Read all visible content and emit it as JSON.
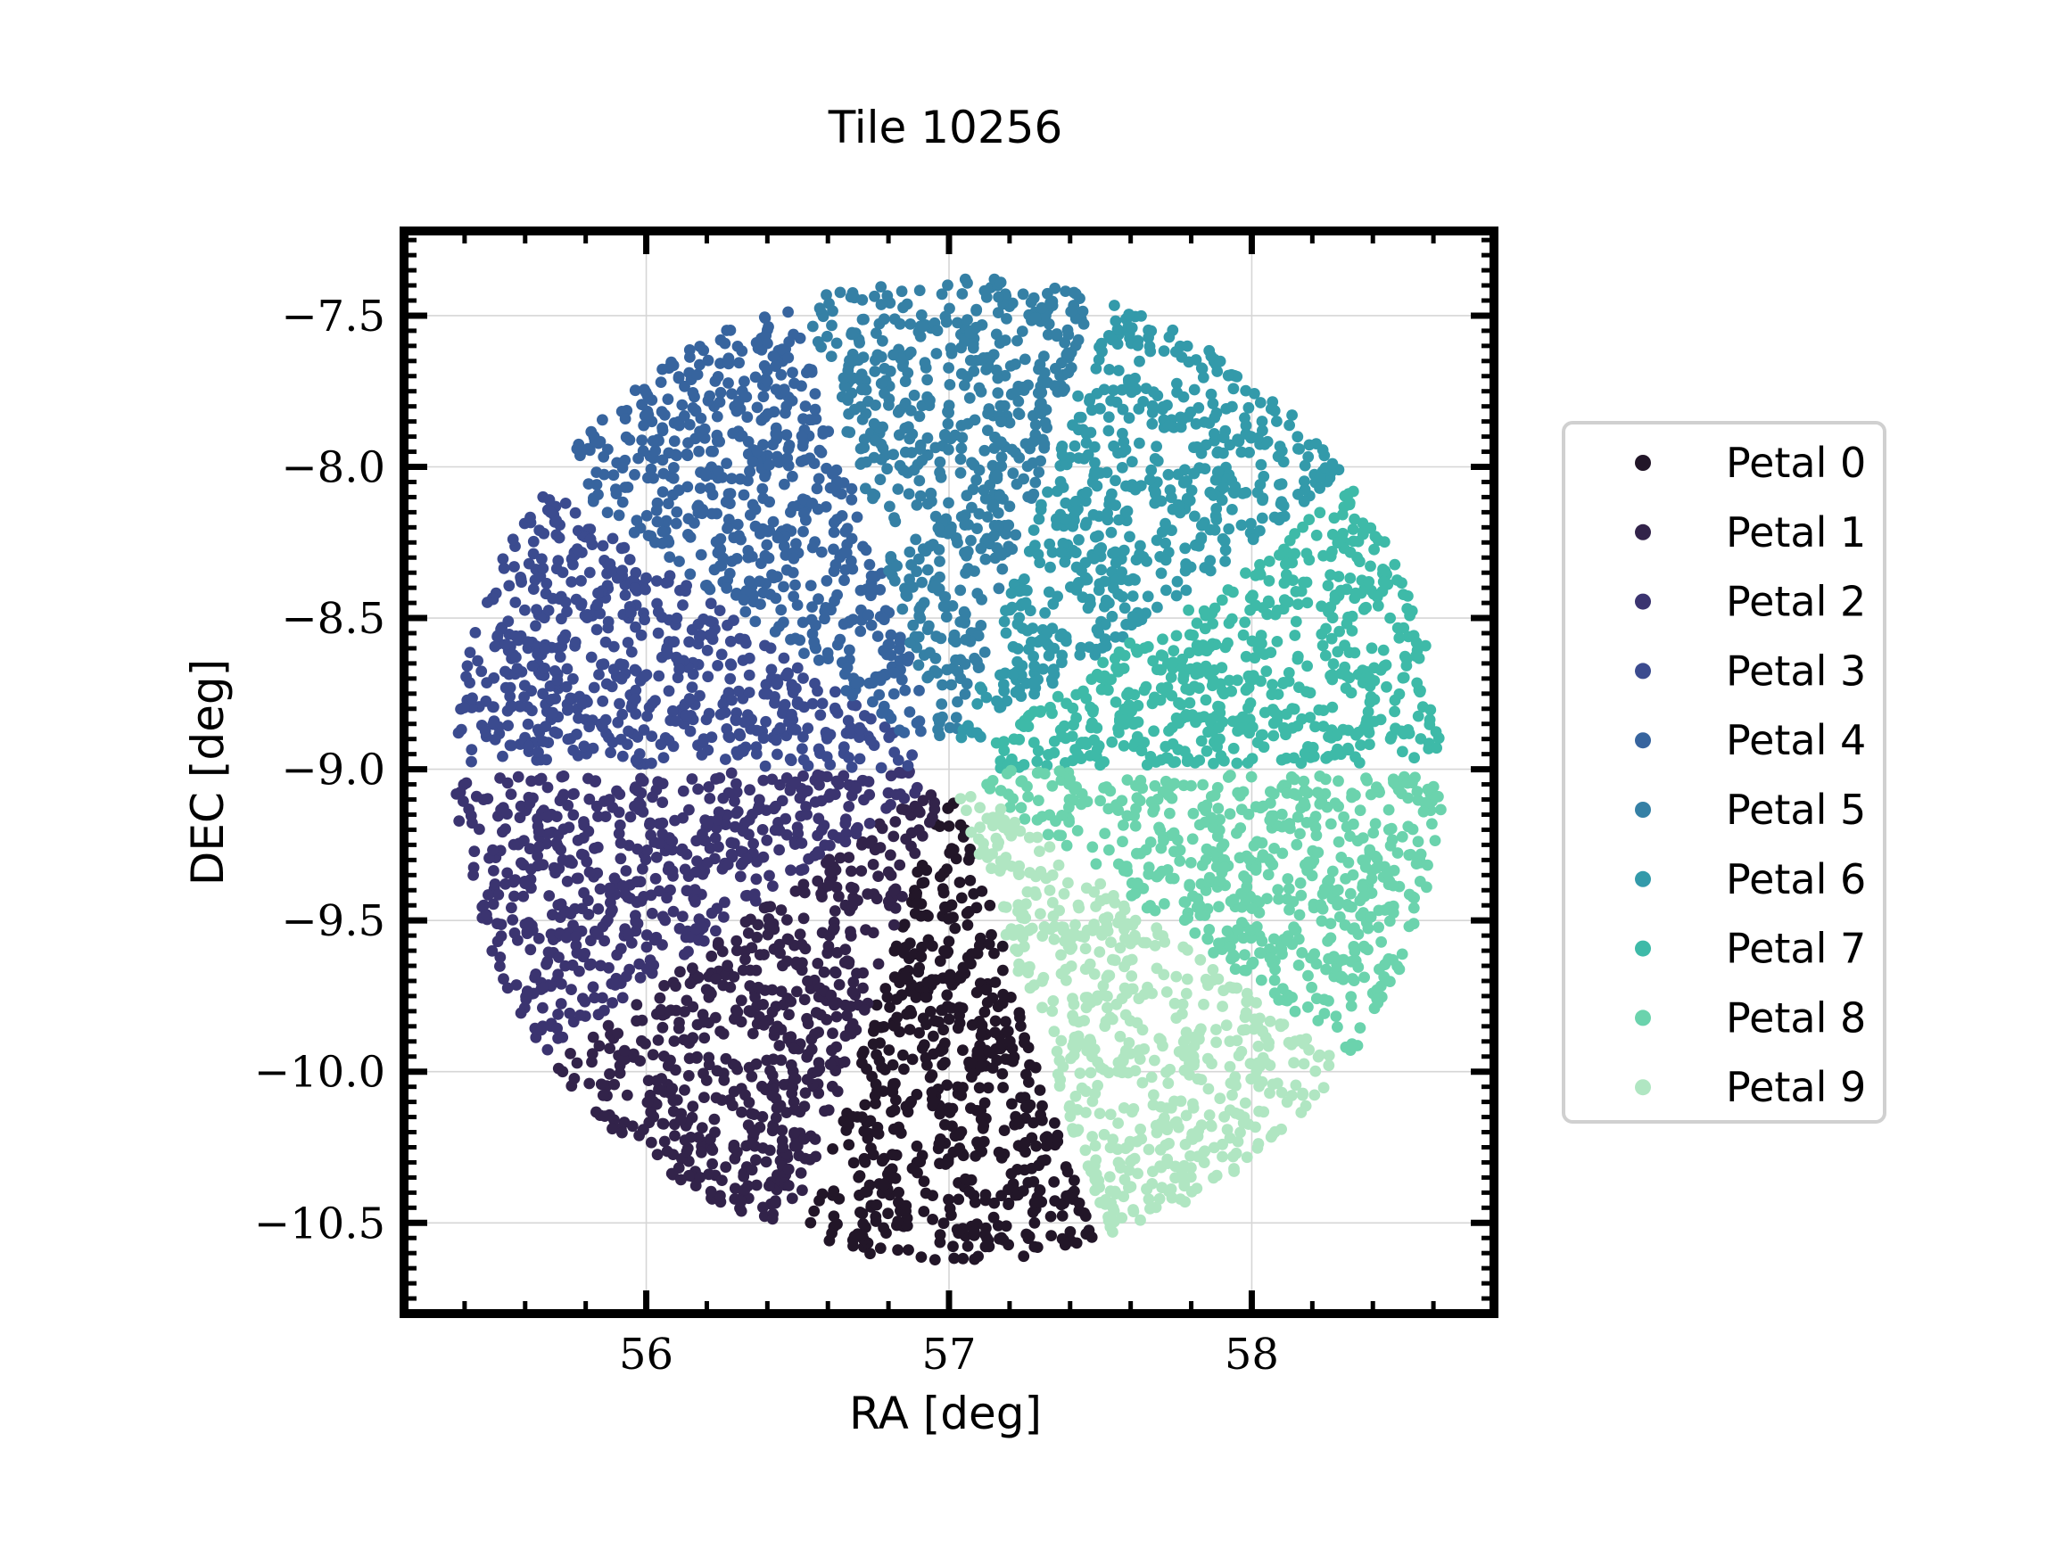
{
  "chart_data": {
    "type": "scatter",
    "title": "Tile 10256",
    "xlabel": "RA [deg]",
    "ylabel": "DEC [deg]",
    "xlim": [
      55.2,
      58.8
    ],
    "ylim": [
      -10.8,
      -7.22
    ],
    "xticks": [
      56,
      57,
      58
    ],
    "xtick_labels": [
      "56",
      "57",
      "58"
    ],
    "yticks": [
      -7.5,
      -8.0,
      -8.5,
      -9.0,
      -9.5,
      -10.0,
      -10.5
    ],
    "ytick_labels": [
      "−7.5",
      "−8.0",
      "−8.5",
      "−9.0",
      "−9.5",
      "−10.0",
      "−10.5"
    ],
    "grid": true,
    "legend_position": "right, outside plot",
    "field_center": [
      57.0,
      -9.0
    ],
    "field_radius_deg": 1.63,
    "series": [
      {
        "name": "Petal 0",
        "color": "#221628",
        "angle_range_deg": [
          -108,
          -72
        ]
      },
      {
        "name": "Petal 1",
        "color": "#32234a",
        "angle_range_deg": [
          -144,
          -108
        ]
      },
      {
        "name": "Petal 2",
        "color": "#3b3470",
        "angle_range_deg": [
          -180,
          -144
        ]
      },
      {
        "name": "Petal 3",
        "color": "#3b4b8f",
        "angle_range_deg": [
          144,
          180
        ]
      },
      {
        "name": "Petal 4",
        "color": "#37649e",
        "angle_range_deg": [
          108,
          144
        ]
      },
      {
        "name": "Petal 5",
        "color": "#3580a5",
        "angle_range_deg": [
          72,
          108
        ]
      },
      {
        "name": "Petal 6",
        "color": "#339aaa",
        "angle_range_deg": [
          36,
          72
        ]
      },
      {
        "name": "Petal 7",
        "color": "#3ebaa8",
        "angle_range_deg": [
          0,
          36
        ]
      },
      {
        "name": "Petal 8",
        "color": "#6bd3ad",
        "angle_range_deg": [
          -36,
          0
        ]
      },
      {
        "name": "Petal 9",
        "color": "#b0e6c2",
        "angle_range_deg": [
          -72,
          -36
        ]
      }
    ]
  }
}
